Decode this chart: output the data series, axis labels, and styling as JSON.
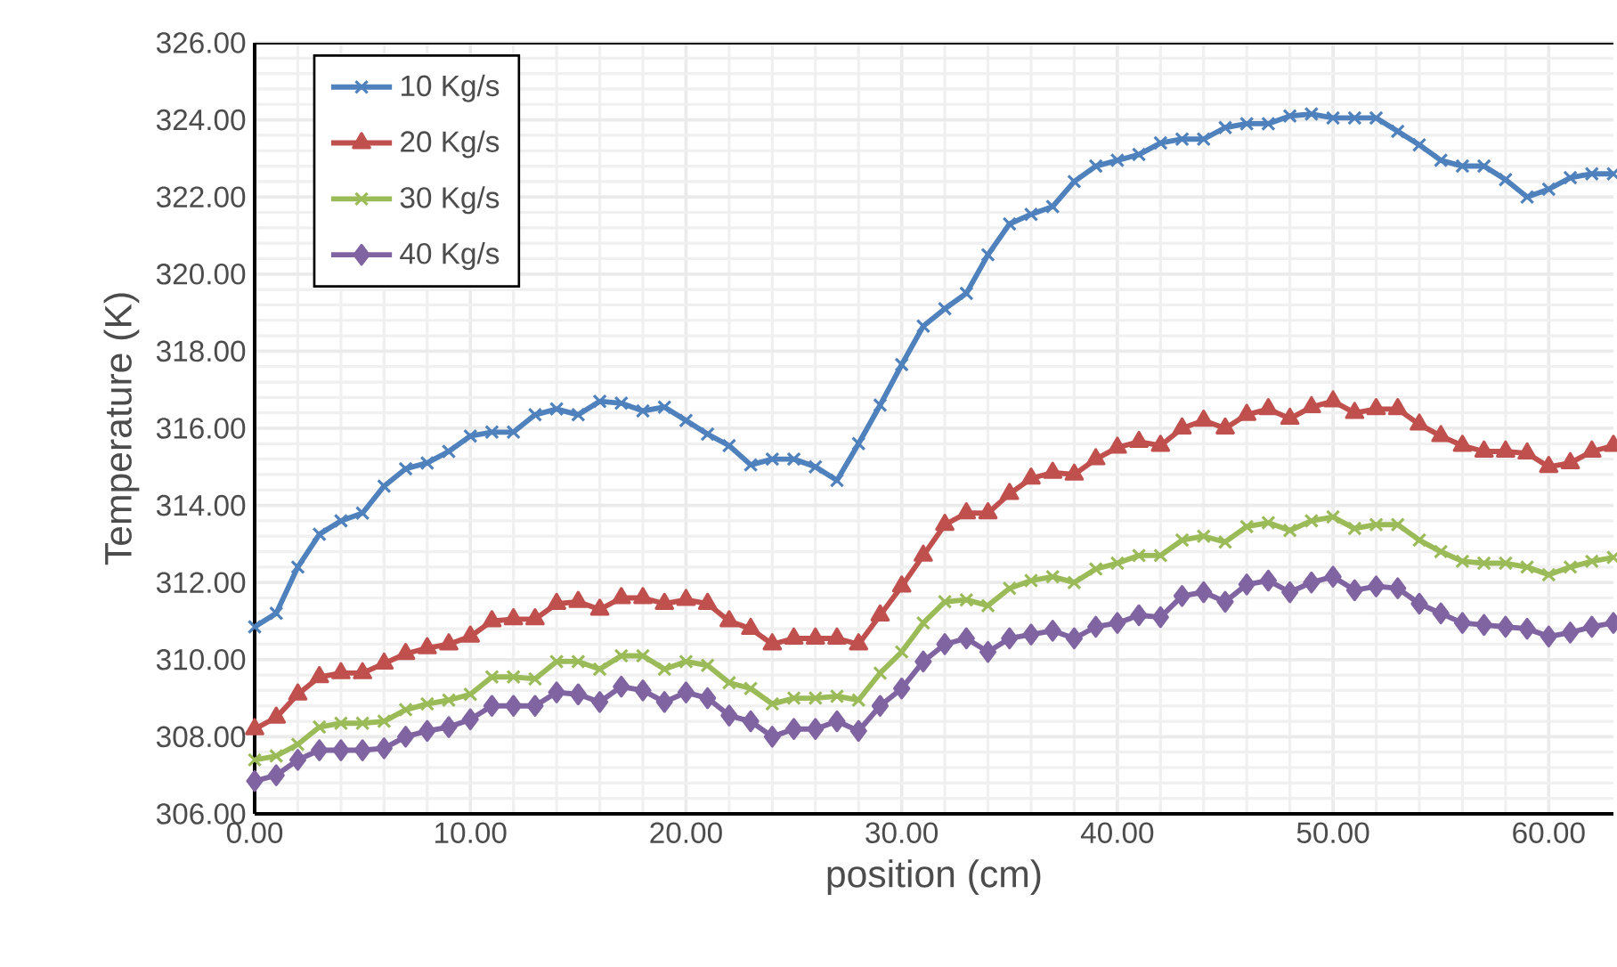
{
  "chart_data": {
    "type": "line",
    "xlabel": "position (cm)",
    "ylabel": "Temperature (K)",
    "x": [
      0,
      1,
      2,
      3,
      4,
      5,
      6,
      7,
      8,
      9,
      10,
      11,
      12,
      13,
      14,
      15,
      16,
      17,
      18,
      19,
      20,
      21,
      22,
      23,
      24,
      25,
      26,
      27,
      28,
      29,
      30,
      31,
      32,
      33,
      34,
      35,
      36,
      37,
      38,
      39,
      40,
      41,
      42,
      43,
      44,
      45,
      46,
      47,
      48,
      49,
      50,
      51,
      52,
      53,
      54,
      55,
      56,
      57,
      58,
      59,
      60,
      61,
      62,
      63
    ],
    "xlim": [
      0,
      63
    ],
    "xticks": [
      {
        "value": 0,
        "label": "0.00"
      },
      {
        "value": 10,
        "label": "10.00"
      },
      {
        "value": 20,
        "label": "20.00"
      },
      {
        "value": 30,
        "label": "30.00"
      },
      {
        "value": 40,
        "label": "40.00"
      },
      {
        "value": 50,
        "label": "50.00"
      },
      {
        "value": 60,
        "label": "60.00"
      }
    ],
    "ylim": [
      306,
      326
    ],
    "yticks": [
      {
        "value": 306,
        "label": "306.00"
      },
      {
        "value": 308,
        "label": "308.00"
      },
      {
        "value": 310,
        "label": "310.00"
      },
      {
        "value": 312,
        "label": "312.00"
      },
      {
        "value": 314,
        "label": "314.00"
      },
      {
        "value": 316,
        "label": "316.00"
      },
      {
        "value": 318,
        "label": "318.00"
      },
      {
        "value": 320,
        "label": "320.00"
      },
      {
        "value": 322,
        "label": "322.00"
      },
      {
        "value": 324,
        "label": "324.00"
      },
      {
        "value": 326,
        "label": "326.00"
      }
    ],
    "grid": true,
    "legend": "top left",
    "line_style": "solid",
    "series": [
      {
        "name": "10 Kg/s",
        "color": "#4f81bd",
        "marker": "cross",
        "values": [
          310.85,
          311.2,
          312.4,
          313.25,
          313.6,
          313.8,
          314.5,
          314.95,
          315.1,
          315.4,
          315.8,
          315.9,
          315.9,
          316.35,
          316.5,
          316.35,
          316.7,
          316.65,
          316.45,
          316.55,
          316.2,
          315.85,
          315.55,
          315.05,
          315.2,
          315.2,
          315.0,
          314.65,
          315.6,
          316.6,
          317.65,
          318.65,
          319.1,
          319.5,
          320.5,
          321.3,
          321.55,
          321.75,
          322.4,
          322.8,
          322.95,
          323.1,
          323.4,
          323.5,
          323.5,
          323.8,
          323.9,
          323.9,
          324.1,
          324.15,
          324.05,
          324.05,
          324.05,
          323.7,
          323.35,
          322.95,
          322.8,
          322.8,
          322.45,
          322.0,
          322.2,
          322.5,
          322.6,
          322.6
        ]
      },
      {
        "name": "20 Kg/s",
        "color": "#c0504d",
        "marker": "triangle",
        "values": [
          308.2,
          308.5,
          309.1,
          309.55,
          309.65,
          309.65,
          309.9,
          310.15,
          310.3,
          310.4,
          310.6,
          311.0,
          311.05,
          311.05,
          311.45,
          311.5,
          311.3,
          311.6,
          311.6,
          311.45,
          311.55,
          311.45,
          311.0,
          310.8,
          310.4,
          310.55,
          310.55,
          310.55,
          310.4,
          311.15,
          311.9,
          312.7,
          313.5,
          313.8,
          313.8,
          314.3,
          314.7,
          314.85,
          314.8,
          315.2,
          315.5,
          315.65,
          315.55,
          316.0,
          316.2,
          316.0,
          316.35,
          316.5,
          316.25,
          316.55,
          316.7,
          316.4,
          316.5,
          316.5,
          316.1,
          315.8,
          315.55,
          315.4,
          315.4,
          315.35,
          315.0,
          315.1,
          315.4,
          315.55
        ]
      },
      {
        "name": "30 Kg/s",
        "color": "#9bbb59",
        "marker": "cross",
        "values": [
          307.4,
          307.5,
          307.8,
          308.25,
          308.35,
          308.35,
          308.4,
          308.7,
          308.85,
          308.95,
          309.1,
          309.55,
          309.55,
          309.5,
          309.95,
          309.95,
          309.75,
          310.1,
          310.1,
          309.75,
          309.95,
          309.85,
          309.4,
          309.25,
          308.85,
          309.0,
          309.0,
          309.05,
          308.95,
          309.65,
          310.2,
          310.95,
          311.5,
          311.55,
          311.4,
          311.85,
          312.05,
          312.15,
          312.0,
          312.35,
          312.5,
          312.7,
          312.7,
          313.1,
          313.2,
          313.05,
          313.45,
          313.55,
          313.35,
          313.6,
          313.7,
          313.4,
          313.5,
          313.5,
          313.1,
          312.8,
          312.55,
          312.5,
          312.5,
          312.4,
          312.2,
          312.4,
          312.55,
          312.65
        ]
      },
      {
        "name": "40 Kg/s",
        "color": "#8064a2",
        "marker": "diamond",
        "values": [
          306.85,
          307.0,
          307.4,
          307.65,
          307.65,
          307.65,
          307.7,
          308.0,
          308.15,
          308.25,
          308.45,
          308.8,
          308.8,
          308.8,
          309.15,
          309.1,
          308.9,
          309.3,
          309.2,
          308.9,
          309.15,
          309.0,
          308.55,
          308.4,
          308.0,
          308.2,
          308.2,
          308.4,
          308.15,
          308.8,
          309.25,
          309.95,
          310.4,
          310.55,
          310.2,
          310.55,
          310.65,
          310.75,
          310.55,
          310.85,
          310.95,
          311.15,
          311.1,
          311.65,
          311.75,
          311.5,
          311.95,
          312.05,
          311.75,
          312.0,
          312.15,
          311.8,
          311.9,
          311.85,
          311.45,
          311.2,
          310.95,
          310.9,
          310.85,
          310.8,
          310.6,
          310.7,
          310.85,
          310.95
        ]
      }
    ]
  }
}
